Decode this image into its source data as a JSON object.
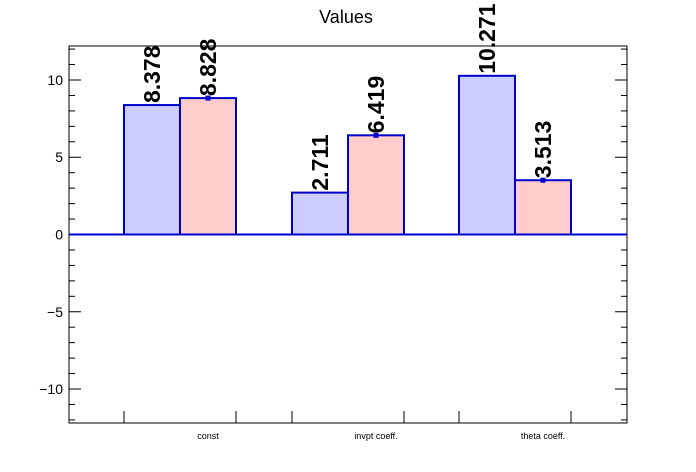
{
  "chart_data": {
    "type": "bar",
    "title": "Values",
    "xlabel": "",
    "ylabel": "",
    "ylim": [
      -12.2,
      12.2
    ],
    "yticks": [
      -10,
      -5,
      0,
      5,
      10
    ],
    "ytick_labels": [
      "−10",
      "−5",
      "0",
      "5",
      "10"
    ],
    "categories": [
      "const",
      "invpt coeff.",
      "theta coeff."
    ],
    "series": [
      {
        "values": [
          8.378,
          2.711,
          10.271
        ],
        "labels": [
          "8.378",
          "2.711",
          "10.271"
        ],
        "errors": [
          0,
          0,
          0
        ]
      },
      {
        "values": [
          8.828,
          6.419,
          3.513
        ],
        "labels": [
          "8.828",
          "6.419",
          "3.513"
        ],
        "errors": [
          0.15,
          0.15,
          0.15
        ]
      }
    ],
    "colors": {
      "series_fill": [
        "#ccccff",
        "#ffcccc"
      ],
      "bar_edge": "#0000cc",
      "axis": "#000000",
      "zero_line": "#0000cc"
    },
    "grid": false,
    "legend": "none"
  }
}
